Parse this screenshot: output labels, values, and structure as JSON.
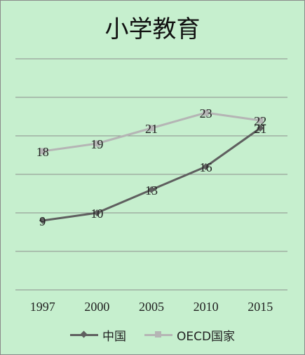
{
  "chart_data": {
    "type": "line",
    "title": "小学教育",
    "categories": [
      "1997",
      "2000",
      "2005",
      "2010",
      "2015"
    ],
    "ylim": [
      0,
      30
    ],
    "grid": true,
    "legend_position": "bottom",
    "series": [
      {
        "name": "中国",
        "values": [
          9,
          10,
          13,
          16,
          21
        ],
        "color": "#5f5f5f",
        "marker": "diamond"
      },
      {
        "name": "OECD国家",
        "values": [
          18,
          19,
          21,
          23,
          22
        ],
        "color": "#b5b5b5",
        "marker": "square"
      }
    ]
  }
}
